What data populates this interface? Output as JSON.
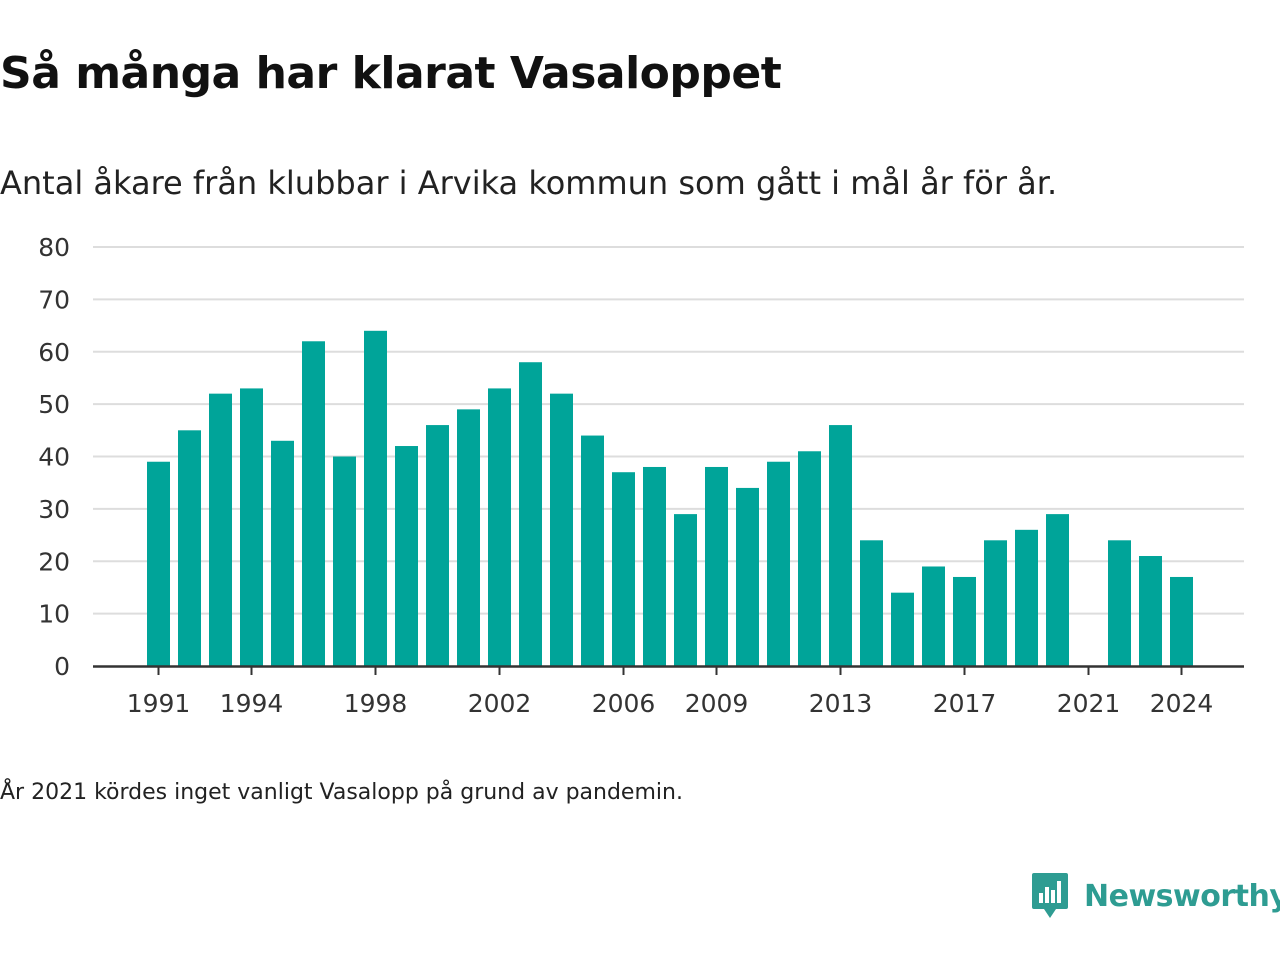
{
  "header": {
    "title": "Så många har klarat Vasaloppet",
    "subtitle": "Antal åkare från klubbar i Arvika kommun som gått i mål år för år."
  },
  "footnote": "År 2021 kördes inget vanligt Vasalopp på grund av pandemin.",
  "brand": {
    "name": "Newsworthy",
    "icon": "newsworthy-logo-icon",
    "color": "#2e9c92"
  },
  "chart_data": {
    "type": "bar",
    "title": "Så många har klarat Vasaloppet",
    "subtitle": "Antal åkare från klubbar i Arvika kommun som gått i mål år för år.",
    "xlabel": "",
    "ylabel": "",
    "ylim": [
      0,
      80
    ],
    "yticks": [
      0,
      10,
      20,
      30,
      40,
      50,
      60,
      70,
      80
    ],
    "xticks": [
      1991,
      1994,
      1998,
      2002,
      2006,
      2009,
      2013,
      2017,
      2021,
      2024
    ],
    "grid": true,
    "bar_color": "#00a499",
    "categories": [
      1991,
      1992,
      1993,
      1994,
      1995,
      1996,
      1997,
      1998,
      1999,
      2000,
      2001,
      2002,
      2003,
      2004,
      2005,
      2006,
      2007,
      2008,
      2009,
      2010,
      2011,
      2012,
      2013,
      2014,
      2015,
      2016,
      2017,
      2018,
      2019,
      2020,
      2021,
      2022,
      2023,
      2024
    ],
    "values": [
      39,
      45,
      52,
      53,
      43,
      62,
      40,
      64,
      42,
      46,
      49,
      53,
      58,
      52,
      44,
      37,
      38,
      29,
      38,
      34,
      39,
      41,
      46,
      24,
      14,
      19,
      17,
      24,
      26,
      29,
      null,
      24,
      21,
      17
    ]
  }
}
